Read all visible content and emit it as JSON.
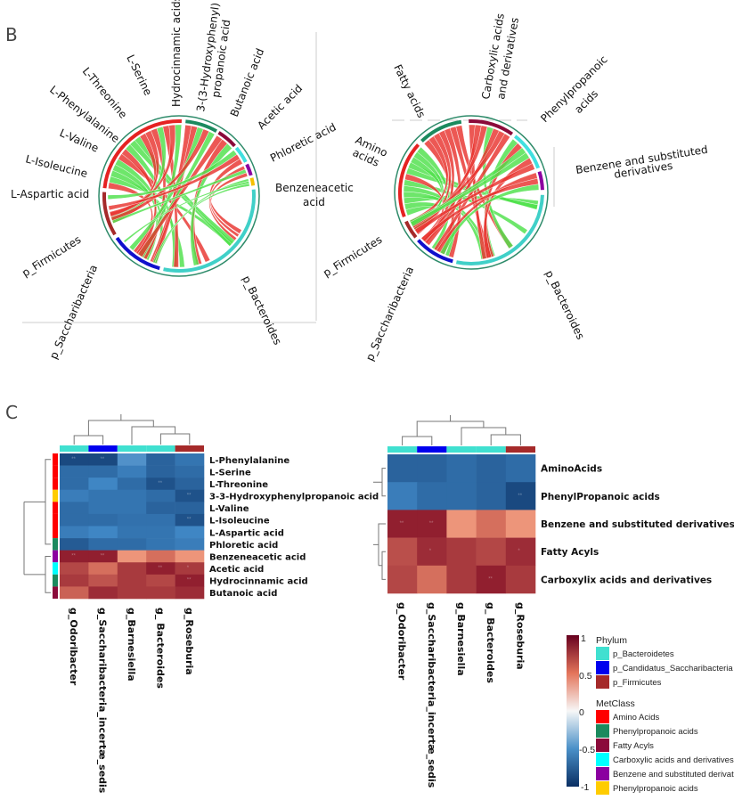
{
  "panels": {
    "b": "B",
    "c": "C"
  },
  "chord_left": {
    "labels": {
      "aspartic": "L-Aspartic acid",
      "isoleucine": "L-Isoleucine",
      "valine": "L-Valine",
      "phenylalanine": "L-Phenylalanine",
      "threonine": "L-Threonine",
      "serine": "L-Serine",
      "hydrocinnamic": "Hydrocinnamic acids",
      "hydroxyphenyl_1": "3-(3-Hydroxyphenyl)",
      "hydroxyphenyl_2": "propanoic acid",
      "butanoic": "Butanoic acid",
      "acetic": "Acetic acid",
      "phloretic": "Phloretic acid",
      "benzeneacetic_1": "Benzeneacetic",
      "benzeneacetic_2": "acid",
      "firmicutes": "p_Firmicutes",
      "saccharibacteria": "p_Saccharibacteria",
      "bacteroides": "p_Bacteroides"
    }
  },
  "chord_right": {
    "labels": {
      "amino_1": "Amino",
      "amino_2": "acids",
      "fatty": "Fatty acids",
      "carboxylic_1": "Carboxylic acids",
      "carboxylic_2": "and derivatives",
      "phenylpropanoic_1": "Phenylpropanoic",
      "phenylpropanoic_2": "acids",
      "benzene_1": "Benzene and substituted",
      "benzene_2": "derivatives",
      "firmicutes": "p_Firmicutes",
      "saccharibacteria": "p_Saccharibacteria",
      "bacteroides": "p_Bacteroides"
    }
  },
  "chord_colors": {
    "positive": "#e8332e",
    "negative": "#4ee04a"
  },
  "chart_data": [
    {
      "type": "heatmap",
      "columns": [
        "g_Odoribacter",
        "g_Saccharibacteria_incertæ_sedis",
        "g_Barnesiella",
        "g_ Bacteroides",
        "g_Roseburia"
      ],
      "column_phylum": [
        "p_Bacteroidetes",
        "p_Candidatus_Saccharibacteria",
        "p_Bacteroidetes",
        "p_Bacteroidetes",
        "p_Firmicutes"
      ],
      "rows": [
        "L-Phenylalanine",
        "L-Serine",
        "L-Threonine",
        "3-3-Hydroxyphenylpropanoic acid",
        "L-Valine",
        "L-Isoleucine",
        "L-Aspartic acid",
        "Phloretic acid",
        "Benzeneacetic acid",
        "Acetic acid",
        "Hydrocinnamic acid",
        "Butanoic acid"
      ],
      "row_class": [
        "Amino Acids",
        "Amino Acids",
        "Amino Acids",
        "Phenylpropanoic acids (yellow)",
        "Amino Acids",
        "Amino Acids",
        "Amino Acids",
        "Phenylpropanoic acids",
        "Benzene and substituted derivatives",
        "Carboxylic acids and derivatives",
        "Phenylpropanoic acids",
        "Fatty Acyls"
      ],
      "values": [
        [
          -0.85,
          -0.85,
          -0.45,
          -0.7,
          -0.6
        ],
        [
          -0.65,
          -0.65,
          -0.55,
          -0.7,
          -0.65
        ],
        [
          -0.65,
          -0.5,
          -0.65,
          -0.8,
          -0.7
        ],
        [
          -0.55,
          -0.6,
          -0.6,
          -0.65,
          -0.8
        ],
        [
          -0.65,
          -0.6,
          -0.6,
          -0.7,
          -0.7
        ],
        [
          -0.65,
          -0.65,
          -0.62,
          -0.62,
          -0.8
        ],
        [
          -0.55,
          -0.5,
          -0.6,
          -0.6,
          -0.5
        ],
        [
          -0.75,
          -0.65,
          -0.65,
          -0.6,
          -0.55
        ],
        [
          0.9,
          0.9,
          0.45,
          0.6,
          0.45
        ],
        [
          0.75,
          0.6,
          0.8,
          0.9,
          0.8
        ],
        [
          0.8,
          0.7,
          0.8,
          0.75,
          0.9
        ],
        [
          0.65,
          0.85,
          0.8,
          0.8,
          0.85
        ]
      ],
      "significance": [
        [
          "**",
          "**",
          "",
          "",
          ""
        ],
        [
          "",
          "",
          "",
          "",
          ""
        ],
        [
          "",
          "",
          "",
          "**",
          ""
        ],
        [
          "",
          "",
          "",
          "",
          "**"
        ],
        [
          "",
          "",
          "",
          "",
          ""
        ],
        [
          "",
          "",
          "",
          "",
          "**"
        ],
        [
          "",
          "",
          "",
          "",
          ""
        ],
        [
          "",
          "",
          "",
          "",
          ""
        ],
        [
          "**",
          "**",
          "",
          "",
          ""
        ],
        [
          "",
          "",
          "",
          "**",
          "*"
        ],
        [
          "",
          "",
          "",
          "",
          "**"
        ],
        [
          "",
          "",
          "",
          "",
          ""
        ]
      ],
      "color_range": [
        -1,
        1
      ]
    },
    {
      "type": "heatmap",
      "columns": [
        "g_Odoribacter",
        "g_Saccharibacteria_incertæ_sedis",
        "g_Barnesiella",
        "g_ Bacteroides",
        "g_Roseburia"
      ],
      "column_phylum": [
        "p_Bacteroidetes",
        "p_Candidatus_Saccharibacteria",
        "p_Bacteroidetes",
        "p_Bacteroidetes",
        "p_Firmicutes"
      ],
      "rows": [
        "AminoAcids",
        "PhenylPropanoic acids",
        "Benzene and substituted derivatives",
        "Fatty Acyls",
        "Carboxylix acids and derivatives"
      ],
      "values": [
        [
          -0.7,
          -0.7,
          -0.65,
          -0.7,
          -0.65
        ],
        [
          -0.55,
          -0.65,
          -0.65,
          -0.7,
          -0.85
        ],
        [
          0.9,
          0.9,
          0.45,
          0.6,
          0.45
        ],
        [
          0.72,
          0.85,
          0.8,
          0.75,
          0.85
        ],
        [
          0.75,
          0.6,
          0.8,
          0.9,
          0.8
        ]
      ],
      "significance": [
        [
          "",
          "",
          "",
          "",
          ""
        ],
        [
          "",
          "",
          "",
          "",
          "**"
        ],
        [
          "**",
          "**",
          "",
          "",
          ""
        ],
        [
          "",
          "*",
          "",
          "",
          "*"
        ],
        [
          "",
          "",
          "",
          "**",
          ""
        ]
      ],
      "color_range": [
        -1,
        1
      ]
    }
  ],
  "legend": {
    "colorbar_ticks": [
      "1",
      "0.5",
      "0",
      "-0.5",
      "-1"
    ],
    "phylum_title": "Phylum",
    "phylum": [
      {
        "label": "p_Bacteroidetes",
        "color": "#40e0d0"
      },
      {
        "label": "p_Candidatus_Saccharibacteria",
        "color": "#0000ee"
      },
      {
        "label": "p_Firmicutes",
        "color": "#a52a2a"
      }
    ],
    "metclass_title": "MetClass",
    "metclass": [
      {
        "label": "Amino Acids",
        "color": "#ff0000"
      },
      {
        "label": "Phenylpropanoic acids",
        "color": "#1b8a5e"
      },
      {
        "label": "Fatty Acyls",
        "color": "#8b0a3a"
      },
      {
        "label": "Carboxylic acids and derivatives",
        "color": "#00ffff"
      },
      {
        "label": "Benzene and substituted derivat",
        "color": "#8b00a0"
      },
      {
        "label": "Phenylpropanoic acids",
        "color": "#ffcc00"
      }
    ]
  }
}
